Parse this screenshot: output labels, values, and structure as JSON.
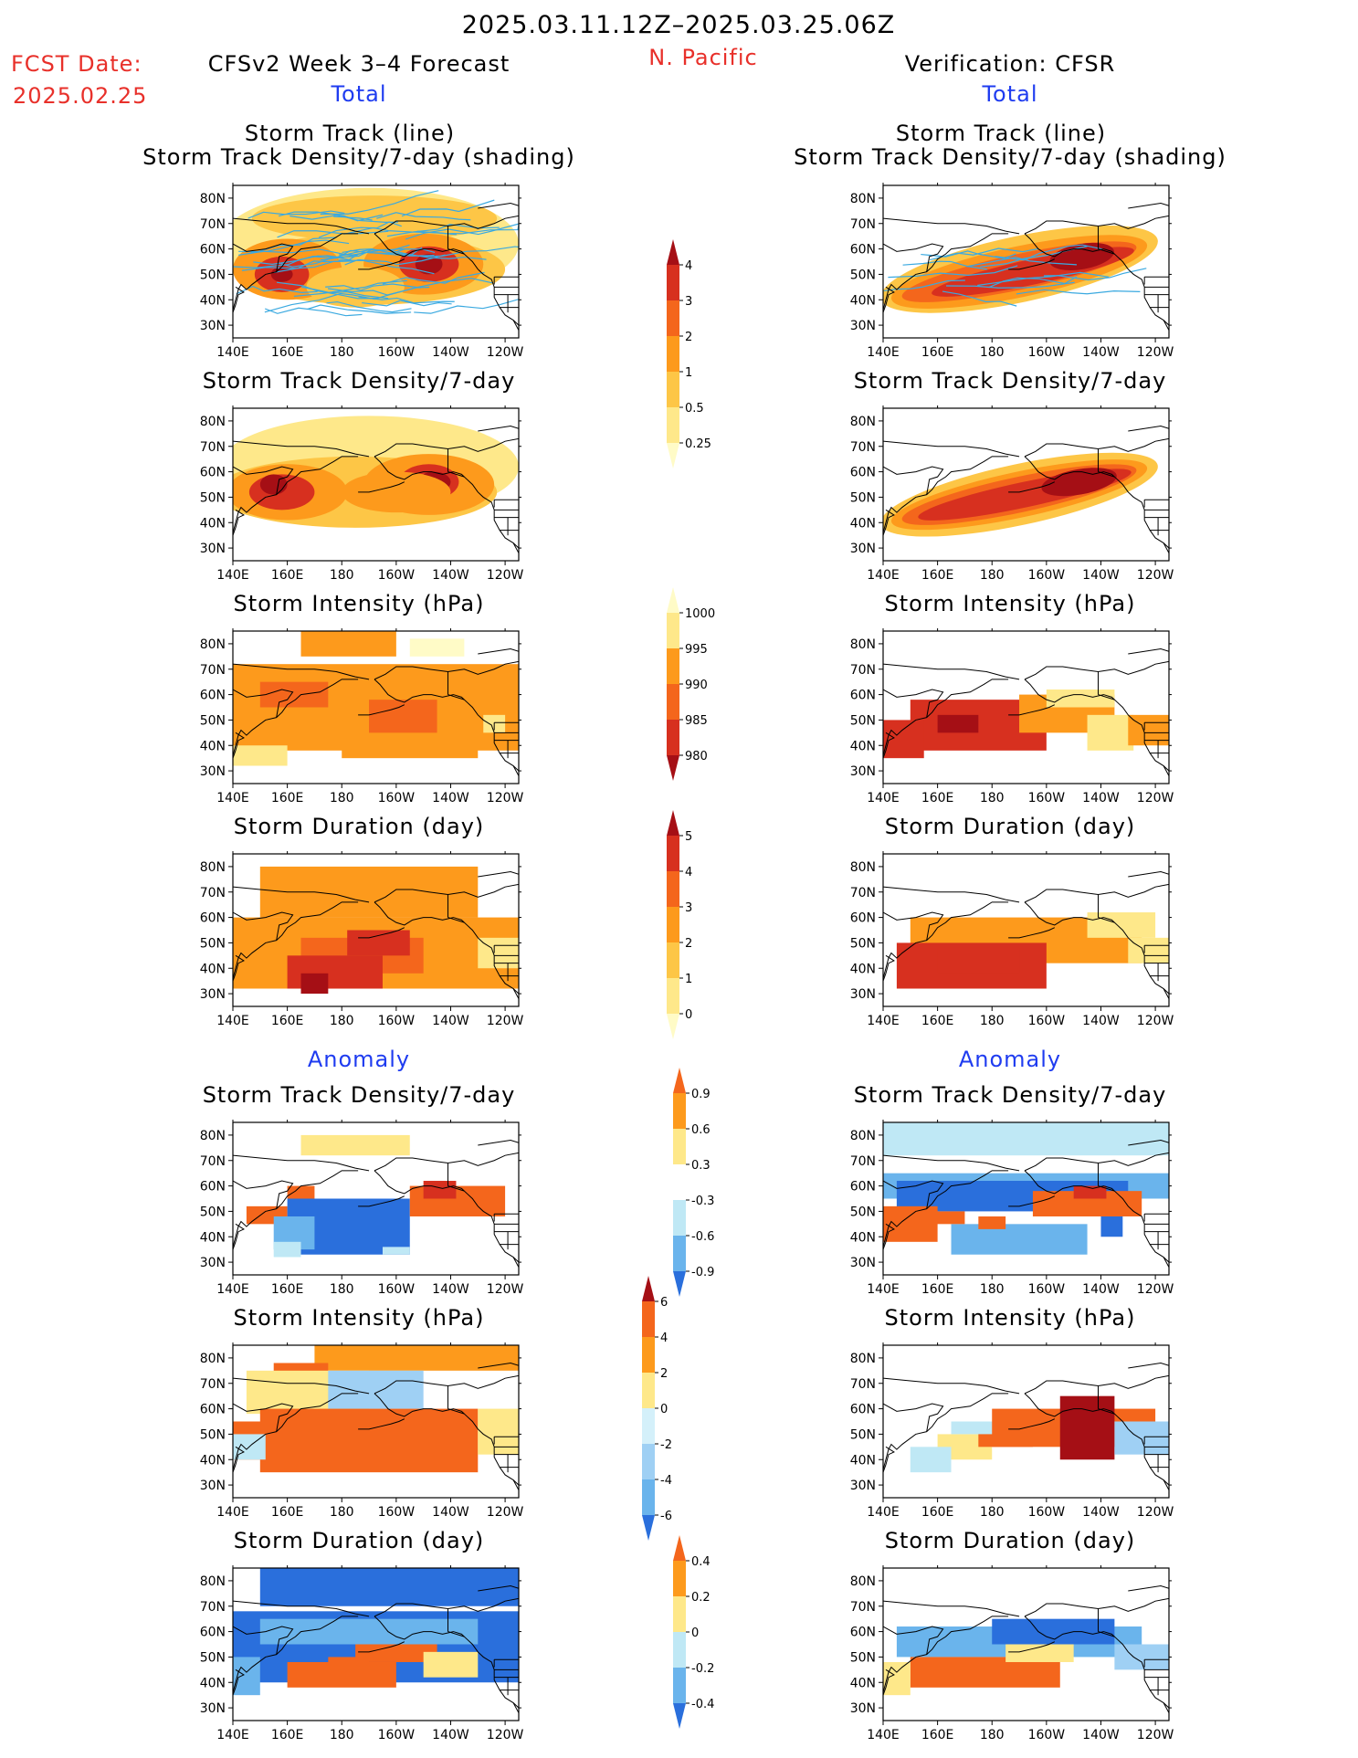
{
  "header": {
    "date_range": "2025.03.11.12Z–2025.03.25.06Z",
    "fcst_label": "FCST Date:",
    "fcst_date": "2025.02.25",
    "region": "N. Pacific",
    "left_model": "CFSv2 Week 3–4 Forecast",
    "right_model": "Verification: CFSR"
  },
  "sections": {
    "total": "Total",
    "anomaly": "Anomaly"
  },
  "titles": {
    "track_line": "Storm Track (line)",
    "track_shading": "Storm Track Density/7-day (shading)",
    "density": "Storm Track Density/7-day",
    "intensity": "Storm Intensity (hPa)",
    "duration": "Storm Duration (day)"
  },
  "axes": {
    "lon_ticks": [
      "140E",
      "160E",
      "180",
      "160W",
      "140W",
      "120W"
    ],
    "lat_ticks": [
      "80N",
      "70N",
      "60N",
      "50N",
      "40N",
      "30N"
    ]
  },
  "colorbars": {
    "density_total": {
      "labels": [
        "4",
        "3",
        "2",
        "1",
        "0.5",
        "0.25"
      ],
      "colors": [
        "#a50f15",
        "#d7301f",
        "#f4661c",
        "#fd9a1c",
        "#fdc646",
        "#fee88a",
        "#fffbc7"
      ]
    },
    "intensity_total": {
      "labels": [
        "1000",
        "995",
        "990",
        "985",
        "980"
      ],
      "colors": [
        "#fffbc7",
        "#fee88a",
        "#fd9a1c",
        "#f4661c",
        "#d7301f",
        "#a50f15"
      ]
    },
    "duration_total": {
      "labels": [
        "5",
        "4",
        "3",
        "2",
        "1",
        "0"
      ],
      "colors": [
        "#a50f15",
        "#d7301f",
        "#f4661c",
        "#fd9a1c",
        "#fdc646",
        "#fee88a",
        "#fffbc7"
      ]
    },
    "density_anom": {
      "labels": [
        "0.9",
        "0.6",
        "0.3",
        "-0.3",
        "-0.6",
        "-0.9"
      ],
      "colors": [
        "#f4661c",
        "#fd9a1c",
        "#fee88a",
        "#ffffff",
        "#bfe8f5",
        "#6ab4ec",
        "#2a6fdc"
      ]
    },
    "intensity_anom": {
      "labels": [
        "6",
        "4",
        "2",
        "0",
        "-2",
        "-4",
        "-6"
      ],
      "colors": [
        "#a50f15",
        "#f4661c",
        "#fd9a1c",
        "#fee88a",
        "#d4f0fa",
        "#9fd0f4",
        "#6ab4ec",
        "#2a6fdc"
      ]
    },
    "duration_anom": {
      "labels": [
        "0.4",
        "0.2",
        "0",
        "-0.2",
        "-0.4"
      ],
      "colors": [
        "#f4661c",
        "#fd9a1c",
        "#fee88a",
        "#bfe8f5",
        "#6ab4ec",
        "#2a6fdc"
      ]
    }
  }
}
